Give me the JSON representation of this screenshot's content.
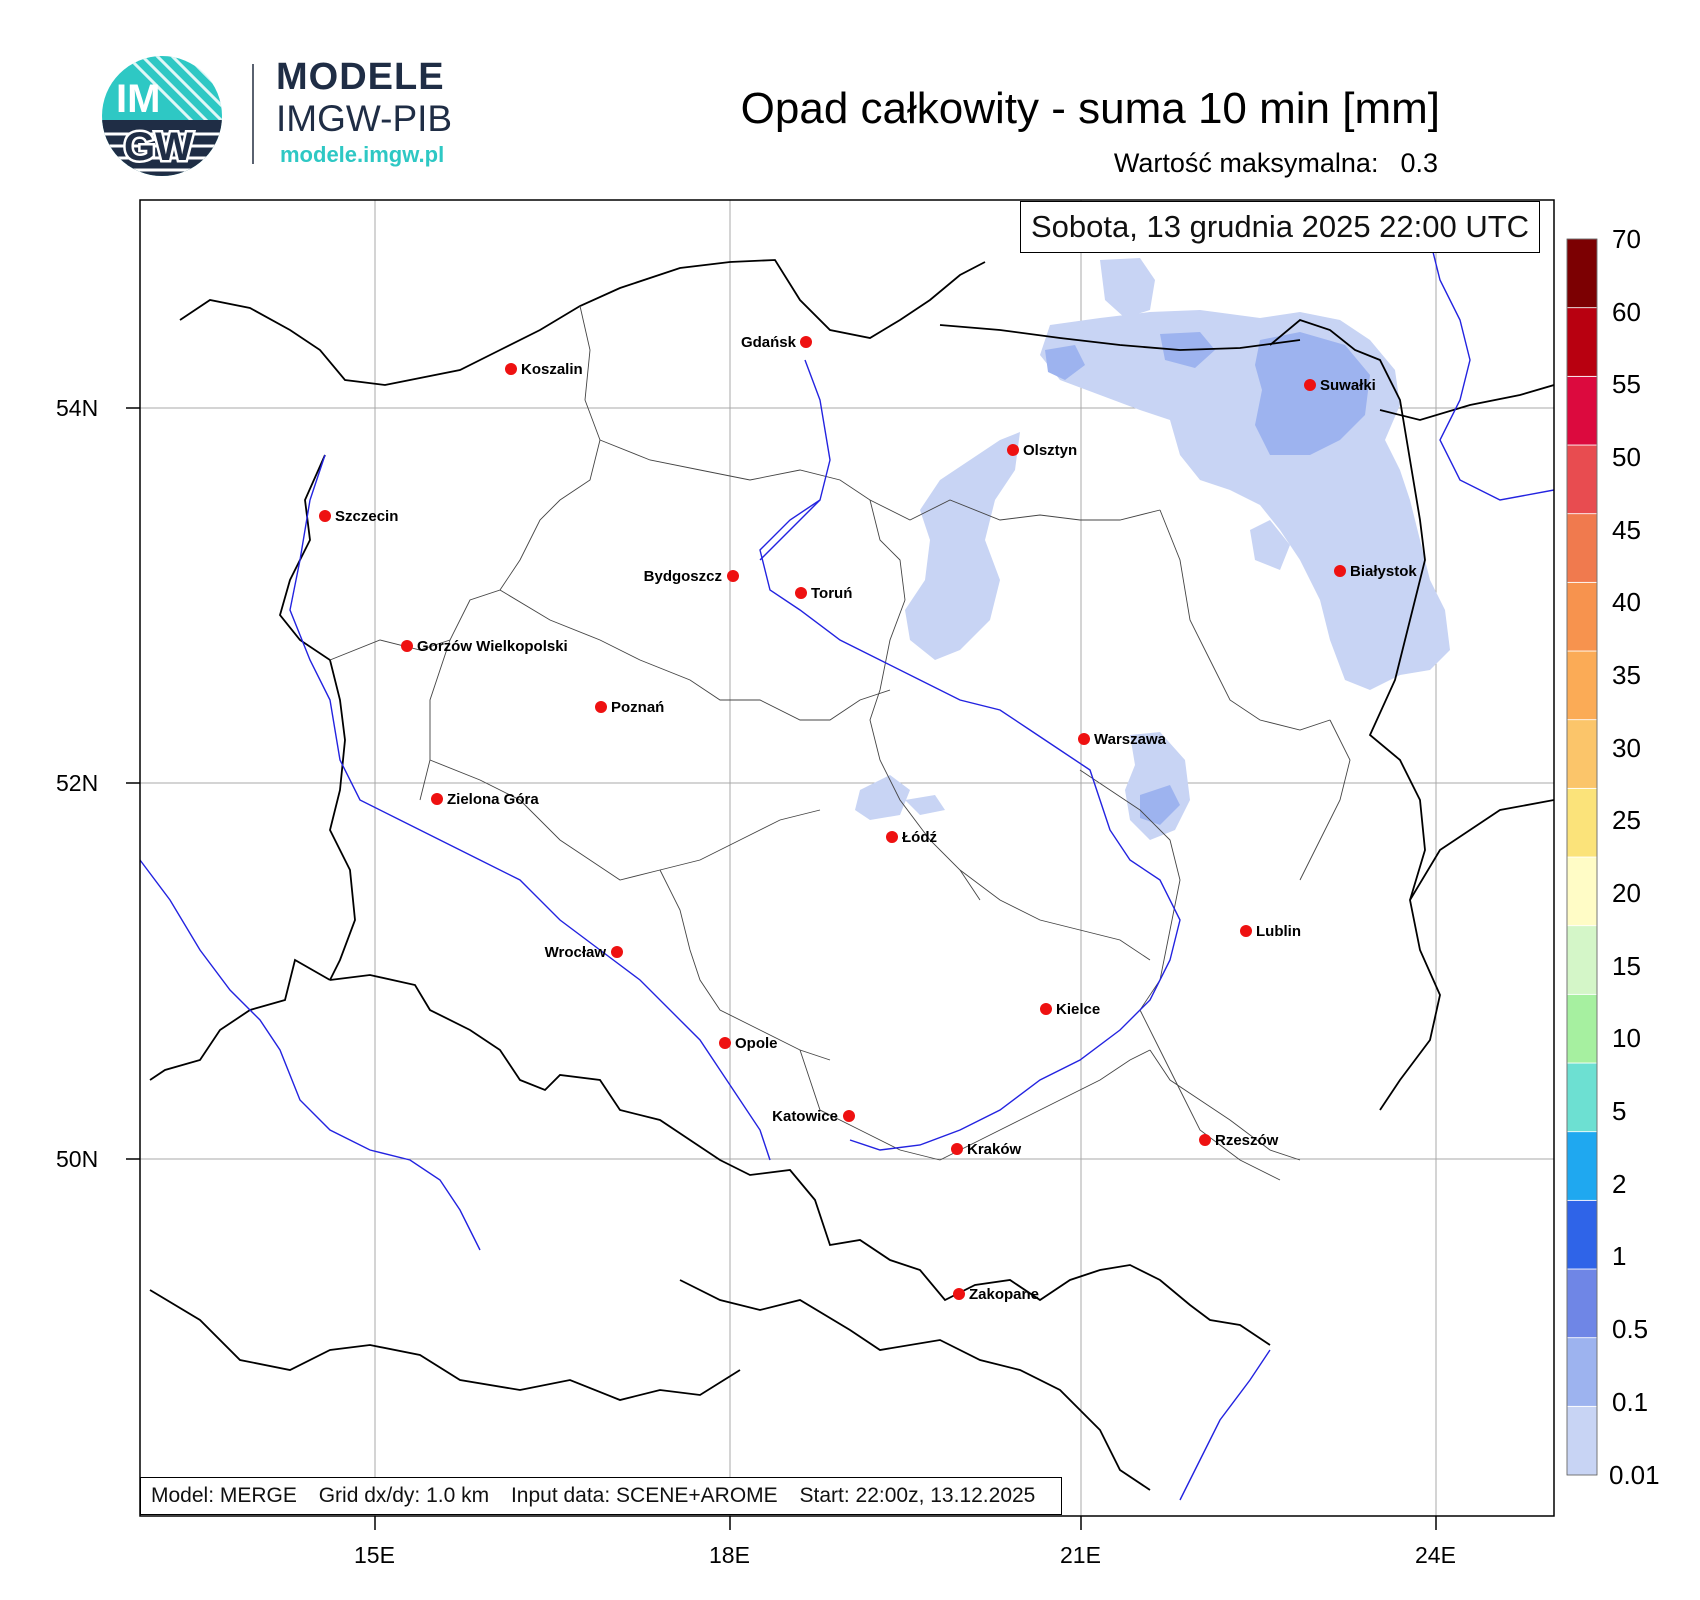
{
  "logo": {
    "line1": "MODELE",
    "line2": "IMGW-PIB",
    "url": "modele.imgw.pl",
    "circle_text_top": "IM",
    "circle_text_bottom": "GW"
  },
  "title": "Opad całkowity - suma 10 min [mm]",
  "max_label": "Wartość maksymalna:",
  "max_value": "0.3",
  "datetime": "Sobota, 13 grudnia 2025 22:00 UTC",
  "info": {
    "model": "Model: MERGE",
    "grid": "Grid dx/dy: 1.0 km",
    "input": "Input data: SCENE+AROME",
    "start": "Start: 22:00z, 13.12.2025"
  },
  "axes": {
    "lat_labels": [
      "54N",
      "52N",
      "50N"
    ],
    "lon_labels": [
      "15E",
      "18E",
      "21E",
      "24E"
    ]
  },
  "cities": [
    {
      "name": "Gdańsk",
      "label_side": "left"
    },
    {
      "name": "Koszalin",
      "label_side": "right"
    },
    {
      "name": "Suwałki",
      "label_side": "right"
    },
    {
      "name": "Olsztyn",
      "label_side": "right"
    },
    {
      "name": "Szczecin",
      "label_side": "right"
    },
    {
      "name": "Białystok",
      "label_side": "right"
    },
    {
      "name": "Bydgoszcz",
      "label_side": "left"
    },
    {
      "name": "Toruń",
      "label_side": "right"
    },
    {
      "name": "Gorzów Wielkopolski",
      "label_side": "right"
    },
    {
      "name": "Poznań",
      "label_side": "right"
    },
    {
      "name": "Warszawa",
      "label_side": "right"
    },
    {
      "name": "Zielona Góra",
      "label_side": "right"
    },
    {
      "name": "Łódź",
      "label_side": "right"
    },
    {
      "name": "Lublin",
      "label_side": "right"
    },
    {
      "name": "Wrocław",
      "label_side": "left"
    },
    {
      "name": "Kielce",
      "label_side": "right"
    },
    {
      "name": "Opole",
      "label_side": "right"
    },
    {
      "name": "Katowice",
      "label_side": "left"
    },
    {
      "name": "Rzeszów",
      "label_side": "right"
    },
    {
      "name": "Kraków",
      "label_side": "right"
    },
    {
      "name": "Zakopane",
      "label_side": "right"
    }
  ],
  "colorbar": {
    "levels": [
      "0.01",
      "0.1",
      "0.5",
      "1",
      "2",
      "5",
      "10",
      "15",
      "20",
      "25",
      "30",
      "35",
      "40",
      "45",
      "50",
      "55",
      "60",
      "70"
    ],
    "colors": [
      "#c8d4f4",
      "#9db3ef",
      "#6f86e6",
      "#2f64e8",
      "#1fa8f0",
      "#6de0d2",
      "#a6f0a0",
      "#d4f6c8",
      "#fffcc6",
      "#fbe37a",
      "#fbc56a",
      "#fbab56",
      "#f7934e",
      "#f07a4e",
      "#e84c50",
      "#dc0a3e",
      "#b80010",
      "#7c0002"
    ]
  },
  "precip_colors": {
    "light": "#c8d4f4",
    "medium": "#9db3ef"
  }
}
